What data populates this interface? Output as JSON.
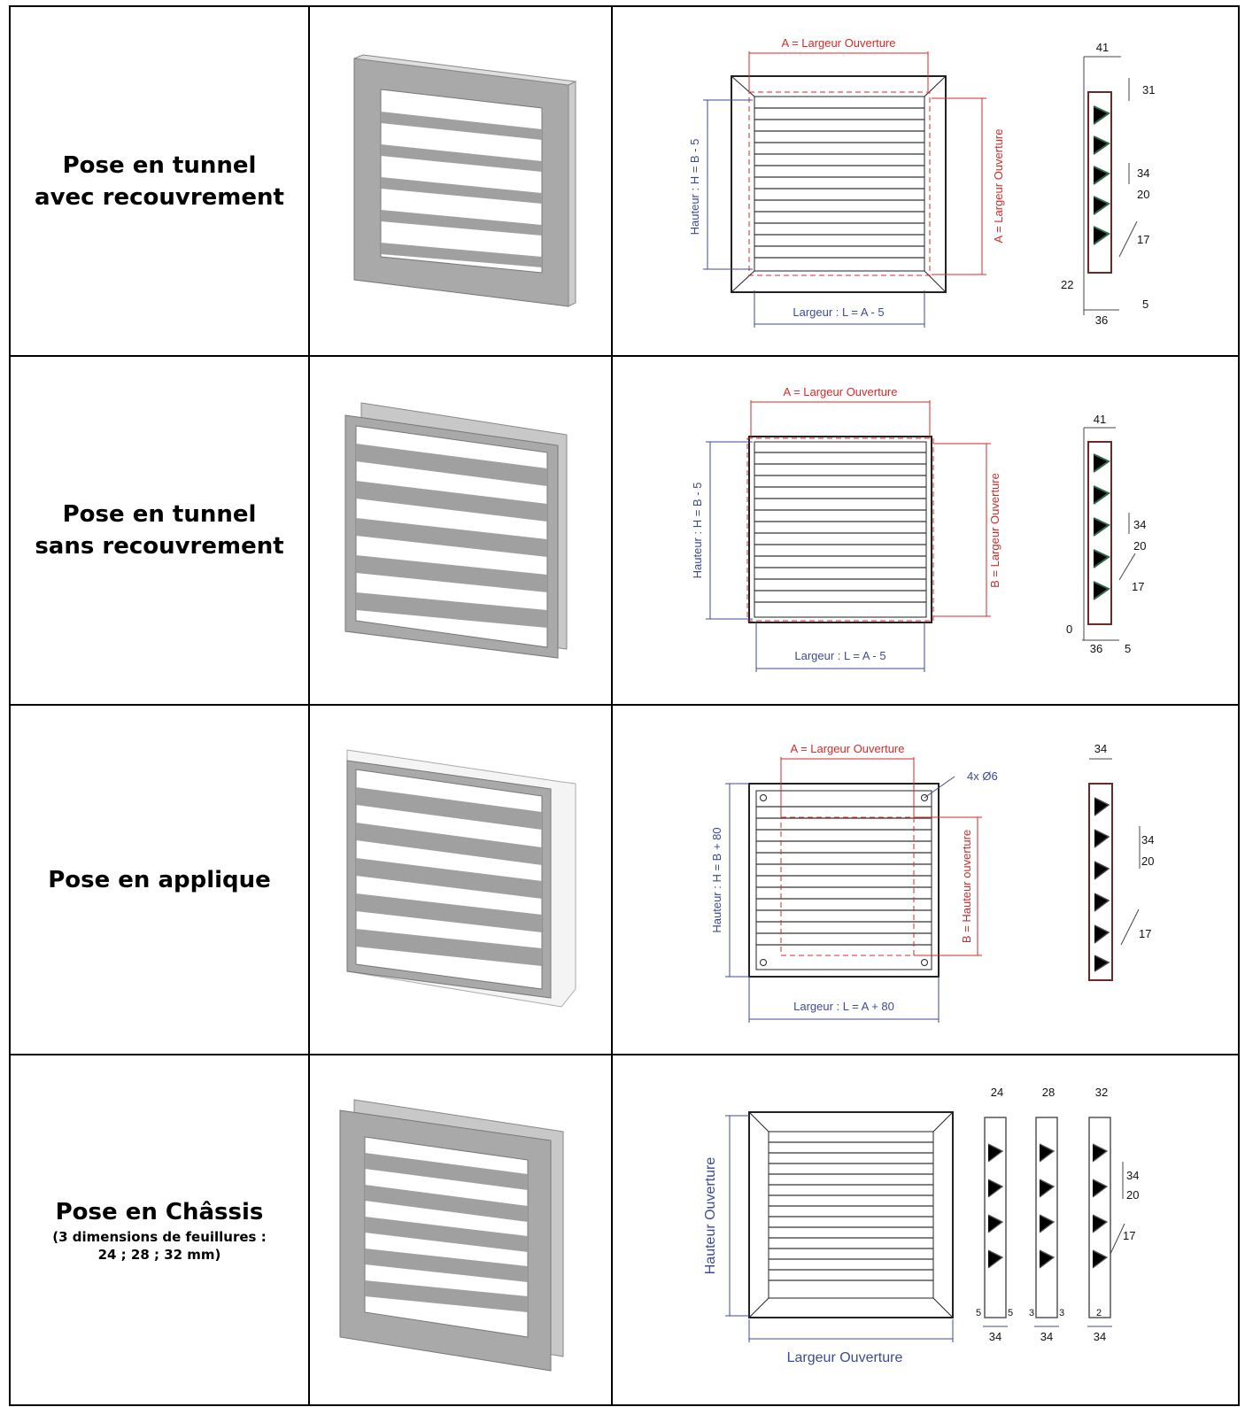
{
  "rows": [
    {
      "title_line1": "Pose en tunnel",
      "title_line2": "avec recouvrement",
      "top_dim": "A = Largeur Ouverture",
      "left_dim": "Hauteur : H = B - 5",
      "right_dim": "A = Largeur Ouverture",
      "bottom_dim": "Largeur : L = A - 5",
      "profile_dims": [
        "41",
        "31",
        "34",
        "20",
        "17",
        "22",
        "5",
        "36"
      ]
    },
    {
      "title_line1": "Pose en tunnel",
      "title_line2": "sans recouvrement",
      "top_dim": "A = Largeur Ouverture",
      "left_dim": "Hauteur : H = B - 5",
      "right_dim": "B = Largeur Ouverture",
      "bottom_dim": "Largeur : L = A - 5",
      "profile_dims": [
        "41",
        "34",
        "20",
        "17",
        "0",
        "36",
        "5"
      ]
    },
    {
      "title_line1": "Pose en applique",
      "top_dim": "A = Largeur Ouverture",
      "hole_note": "4x Ø6",
      "left_dim": "Hauteur : H = B + 80",
      "right_dim": "B = Hauteur ouverture",
      "bottom_dim": "Largeur : L = A + 80",
      "profile_dims": [
        "34",
        "34",
        "20",
        "17"
      ]
    },
    {
      "title_line1": "Pose en Châssis",
      "title_line2": "(3 dimensions de feuillures :",
      "title_line3": "24 ; 28 ; 32 mm)",
      "left_dim": "Hauteur Ouverture",
      "bottom_dim": "Largeur Ouverture",
      "profile_top": [
        "24",
        "28",
        "32"
      ],
      "profile_dims": [
        "34",
        "20",
        "17"
      ],
      "profile_bottom_small": [
        "5",
        "5",
        "3",
        "3",
        "2"
      ],
      "profile_bottom": [
        "34",
        "34",
        "34"
      ]
    }
  ],
  "colors": {
    "red": "#d52a2a",
    "blue": "#3c4a9a",
    "frame_gray": "#a9a9a9"
  }
}
